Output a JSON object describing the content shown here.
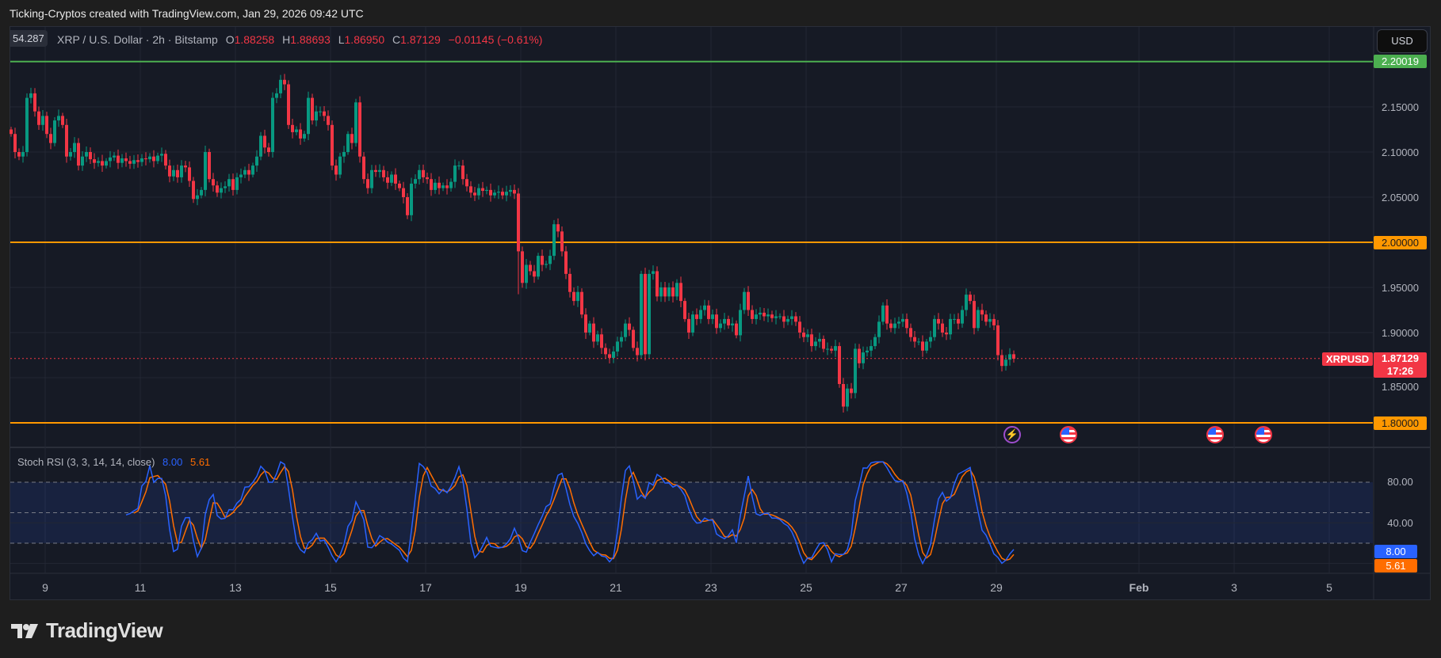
{
  "caption": "Ticking-Cryptos created with TradingView.com, Jan 29, 2026 09:42 UTC",
  "overlay_badge": "54.287",
  "legend": {
    "symbol": "XRP / U.S. Dollar · 2h · Bitstamp",
    "o_label": "O",
    "o": "1.88258",
    "h_label": "H",
    "h": "1.88693",
    "l_label": "L",
    "l": "1.86950",
    "c_label": "C",
    "c": "1.87129",
    "change": "−0.01145 (−0.61%)"
  },
  "currency_button": "USD",
  "colors": {
    "up": "#089981",
    "down": "#f23645",
    "resistance": "#4caf50",
    "level": "#ff9800",
    "k": "#2962ff",
    "d": "#ff6d00"
  },
  "price_axis": {
    "ticks": [
      {
        "value": 2.15,
        "label": "2.15000"
      },
      {
        "value": 2.1,
        "label": "2.10000"
      },
      {
        "value": 2.05,
        "label": "2.05000"
      },
      {
        "value": 1.95,
        "label": "1.95000"
      },
      {
        "value": 1.9,
        "label": "1.90000"
      },
      {
        "value": 1.85,
        "label": "1.85000"
      }
    ],
    "lines": [
      {
        "value": 2.20019,
        "label": "2.20019",
        "color": "#4caf50"
      },
      {
        "value": 2.0,
        "label": "2.00000",
        "color": "#ff9800"
      },
      {
        "value": 1.8,
        "label": "1.80000",
        "color": "#ff9800"
      }
    ],
    "current": {
      "symbol": "XRPUSD",
      "value": 1.87129,
      "label": "1.87129",
      "countdown": "17:26"
    }
  },
  "chart_data": {
    "type": "candlestick",
    "symbol": "XRPUSD",
    "interval": "2h",
    "first_open": 2.125,
    "closes": [
      2.12,
      2.1,
      2.095,
      2.1,
      2.16,
      2.165,
      2.145,
      2.13,
      2.14,
      2.12,
      2.11,
      2.135,
      2.14,
      2.13,
      2.095,
      2.1,
      2.11,
      2.085,
      2.095,
      2.1,
      2.092,
      2.088,
      2.09,
      2.085,
      2.09,
      2.094,
      2.096,
      2.088,
      2.093,
      2.09,
      2.087,
      2.091,
      2.089,
      2.093,
      2.092,
      2.095,
      2.09,
      2.096,
      2.098,
      2.085,
      2.073,
      2.08,
      2.072,
      2.085,
      2.083,
      2.068,
      2.048,
      2.052,
      2.058,
      2.1,
      2.07,
      2.063,
      2.055,
      2.06,
      2.062,
      2.07,
      2.058,
      2.072,
      2.075,
      2.08,
      2.075,
      2.085,
      2.095,
      2.118,
      2.105,
      2.1,
      2.16,
      2.165,
      2.18,
      2.175,
      2.13,
      2.122,
      2.125,
      2.115,
      2.12,
      2.16,
      2.135,
      2.145,
      2.145,
      2.14,
      2.13,
      2.085,
      2.075,
      2.095,
      2.1,
      2.12,
      2.11,
      2.155,
      2.095,
      2.07,
      2.06,
      2.08,
      2.078,
      2.08,
      2.072,
      2.066,
      2.075,
      2.065,
      2.06,
      2.05,
      2.03,
      2.065,
      2.07,
      2.08,
      2.072,
      2.07,
      2.058,
      2.066,
      2.06,
      2.063,
      2.06,
      2.067,
      2.085,
      2.085,
      2.07,
      2.062,
      2.055,
      2.052,
      2.06,
      2.057,
      2.058,
      2.052,
      2.055,
      2.056,
      2.052,
      2.056,
      2.058,
      2.054,
      1.99,
      1.955,
      1.975,
      1.968,
      1.962,
      1.985,
      1.975,
      1.976,
      1.985,
      2.02,
      2.012,
      1.99,
      1.965,
      1.945,
      1.935,
      1.945,
      1.92,
      1.9,
      1.91,
      1.89,
      1.898,
      1.883,
      1.876,
      1.872,
      1.879,
      1.89,
      1.895,
      1.91,
      1.903,
      1.883,
      1.875,
      1.965,
      1.876,
      1.965,
      1.968,
      1.94,
      1.95,
      1.94,
      1.95,
      1.94,
      1.955,
      1.935,
      1.915,
      1.9,
      1.92,
      1.915,
      1.925,
      1.93,
      1.915,
      1.92,
      1.905,
      1.91,
      1.915,
      1.908,
      1.91,
      1.897,
      1.925,
      1.945,
      1.925,
      1.915,
      1.92,
      1.922,
      1.918,
      1.92,
      1.916,
      1.918,
      1.918,
      1.912,
      1.915,
      1.918,
      1.912,
      1.9,
      1.895,
      1.898,
      1.885,
      1.89,
      1.893,
      1.882,
      1.882,
      1.88,
      1.885,
      1.843,
      1.818,
      1.838,
      1.833,
      1.882,
      1.866,
      1.878,
      1.88,
      1.885,
      1.895,
      1.912,
      1.93,
      1.91,
      1.905,
      1.91,
      1.912,
      1.915,
      1.905,
      1.895,
      1.89,
      1.89,
      1.88,
      1.89,
      1.895,
      1.915,
      1.91,
      1.9,
      1.898,
      1.915,
      1.915,
      1.91,
      1.925,
      1.942,
      1.935,
      1.905,
      1.925,
      1.92,
      1.912,
      1.915,
      1.908,
      1.875,
      1.863,
      1.87,
      1.876,
      1.871
    ],
    "x_ticks": [
      {
        "label": "9",
        "date": "2026-01-09"
      },
      {
        "label": "11",
        "date": "2026-01-11"
      },
      {
        "label": "13",
        "date": "2026-01-13"
      },
      {
        "label": "15",
        "date": "2026-01-15"
      },
      {
        "label": "17",
        "date": "2026-01-17"
      },
      {
        "label": "19",
        "date": "2026-01-19"
      },
      {
        "label": "21",
        "date": "2026-01-21"
      },
      {
        "label": "23",
        "date": "2026-01-23"
      },
      {
        "label": "25",
        "date": "2026-01-25"
      },
      {
        "label": "27",
        "date": "2026-01-27"
      },
      {
        "label": "29",
        "date": "2026-01-29"
      },
      {
        "label": "Feb",
        "date": "2026-02-01"
      },
      {
        "label": "3",
        "date": "2026-02-03"
      },
      {
        "label": "5",
        "date": "2026-02-05"
      }
    ],
    "events": [
      {
        "type": "lightning",
        "color": "#9c4dcc"
      },
      {
        "type": "us-flag"
      },
      {
        "type": "us-flag"
      },
      {
        "type": "us-flag"
      }
    ]
  },
  "stoch_rsi": {
    "title": "Stoch RSI (3, 3, 14, 14, close)",
    "params": {
      "k": 3,
      "d": 3,
      "rsi_length": 14,
      "stoch_length": 14
    },
    "k_value": "8.00",
    "d_value": "5.61",
    "upper_band": 80,
    "middle_band": 50,
    "lower_band": 20,
    "axis_ticks": [
      {
        "value": 80,
        "label": "80.00"
      },
      {
        "value": 40,
        "label": "40.00"
      }
    ]
  },
  "logo_text": "TradingView"
}
